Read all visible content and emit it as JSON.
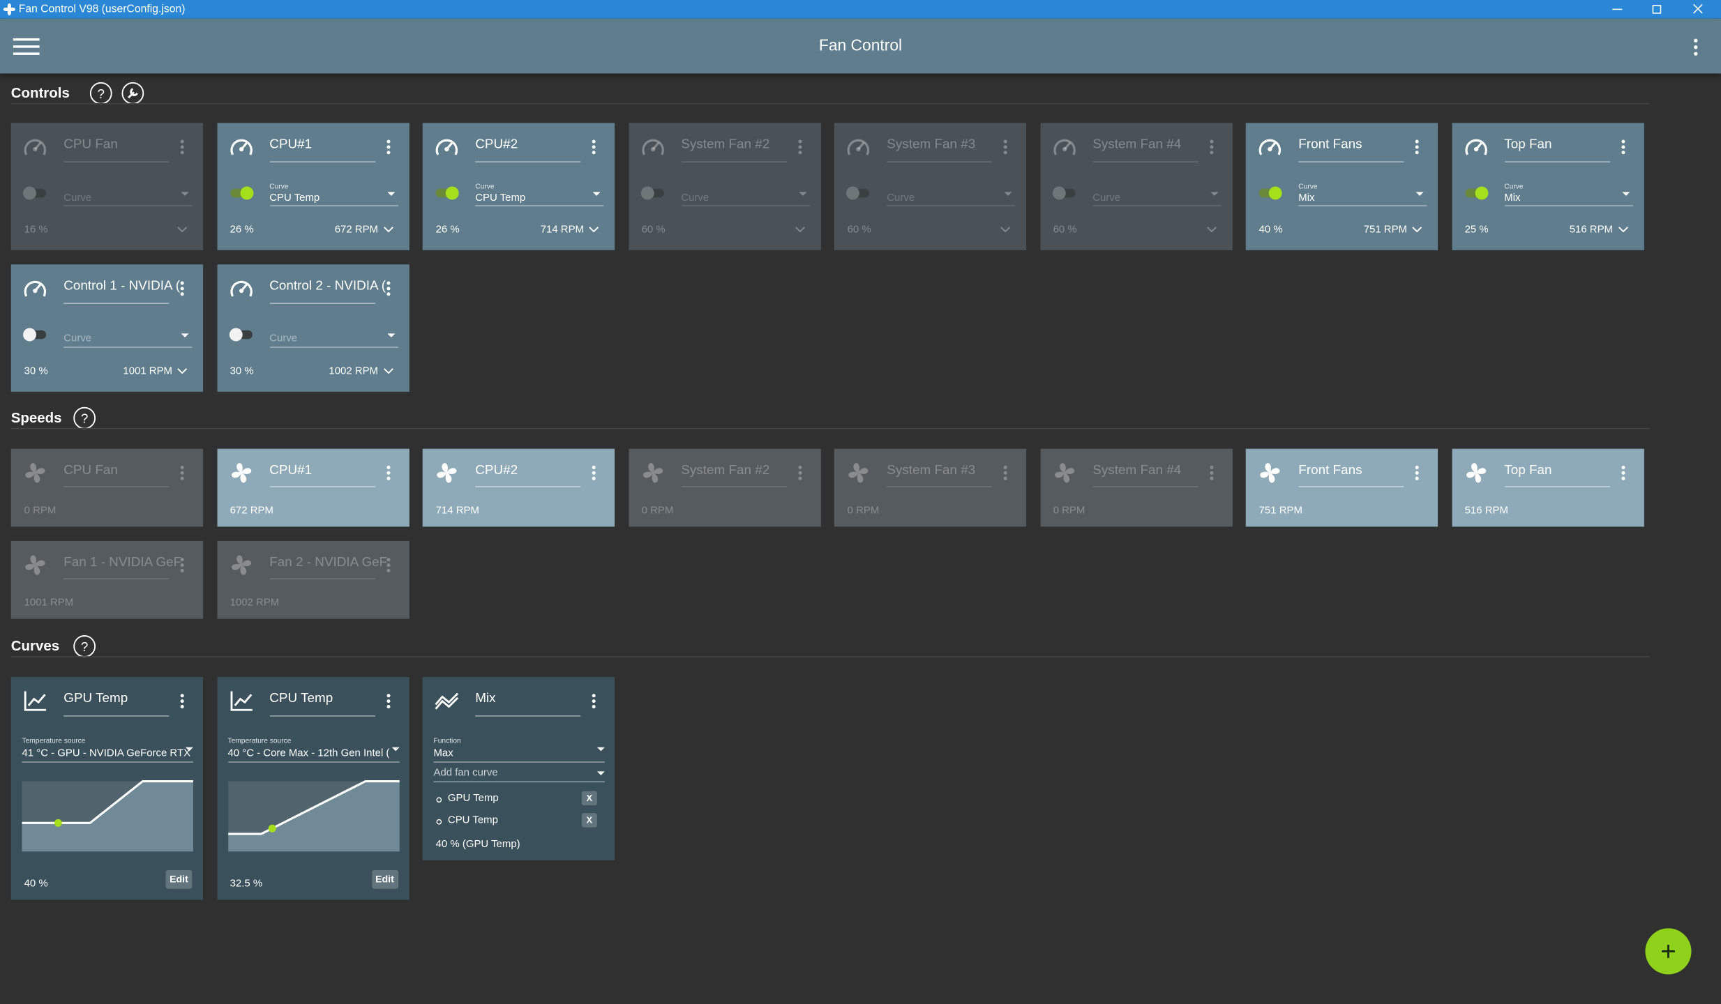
{
  "window": {
    "title": "Fan Control V98 (userConfig.json)"
  },
  "header": {
    "title": "Fan Control"
  },
  "controls": {
    "title": "Controls",
    "cards": [
      {
        "name": "CPU Fan",
        "state": "disabled",
        "curve_label": "Curve",
        "percent": "16 %"
      },
      {
        "name": "CPU#1",
        "state": "on",
        "curve_label": "Curve",
        "curve": "CPU Temp",
        "percent": "26 %",
        "rpm": "672 RPM"
      },
      {
        "name": "CPU#2",
        "state": "on",
        "curve_label": "Curve",
        "curve": "CPU Temp",
        "percent": "26 %",
        "rpm": "714 RPM"
      },
      {
        "name": "System Fan #2",
        "state": "disabled",
        "curve_label": "Curve",
        "percent": "60 %"
      },
      {
        "name": "System Fan #3",
        "state": "disabled",
        "curve_label": "Curve",
        "percent": "60 %"
      },
      {
        "name": "System Fan #4",
        "state": "disabled",
        "curve_label": "Curve",
        "percent": "60 %"
      },
      {
        "name": "Front Fans",
        "state": "on",
        "curve_label": "Curve",
        "curve": "Mix",
        "percent": "40 %",
        "rpm": "751 RPM"
      },
      {
        "name": "Top Fan",
        "state": "on",
        "curve_label": "Curve",
        "curve": "Mix",
        "percent": "25 %",
        "rpm": "516 RPM"
      },
      {
        "name": "Control 1 - NVIDIA (",
        "state": "off",
        "curve_label": "Curve",
        "percent": "30 %",
        "rpm": "1001 RPM"
      },
      {
        "name": "Control 2 - NVIDIA (",
        "state": "off",
        "curve_label": "Curve",
        "percent": "30 %",
        "rpm": "1002 RPM"
      }
    ]
  },
  "speeds": {
    "title": "Speeds",
    "cards": [
      {
        "name": "CPU Fan",
        "active": false,
        "rpm": "0 RPM"
      },
      {
        "name": "CPU#1",
        "active": true,
        "rpm": "672 RPM"
      },
      {
        "name": "CPU#2",
        "active": true,
        "rpm": "714 RPM"
      },
      {
        "name": "System Fan #2",
        "active": false,
        "rpm": "0 RPM"
      },
      {
        "name": "System Fan #3",
        "active": false,
        "rpm": "0 RPM"
      },
      {
        "name": "System Fan #4",
        "active": false,
        "rpm": "0 RPM"
      },
      {
        "name": "Front Fans",
        "active": true,
        "rpm": "751 RPM"
      },
      {
        "name": "Top Fan",
        "active": true,
        "rpm": "516 RPM"
      },
      {
        "name": "Fan 1 - NVIDIA GeF",
        "active": false,
        "rpm": "1001 RPM"
      },
      {
        "name": "Fan 2 - NVIDIA GeF",
        "active": false,
        "rpm": "1002 RPM"
      }
    ]
  },
  "curves": {
    "title": "Curves",
    "cards": [
      {
        "type": "graph",
        "name": "GPU Temp",
        "source_label": "Temperature source",
        "source": "41 °C - GPU - NVIDIA GeForce RTX",
        "value": "40 %",
        "button": "Edit"
      },
      {
        "type": "graph",
        "name": "CPU Temp",
        "source_label": "Temperature source",
        "source": "40 °C - Core Max - 12th Gen Intel (",
        "value": "32.5 %",
        "button": "Edit"
      },
      {
        "type": "mix",
        "name": "Mix",
        "function_label": "Function",
        "function": "Max",
        "add_label": "Add fan curve",
        "items": [
          "GPU Temp",
          "CPU Temp"
        ],
        "remove": "X",
        "value": "40 % (GPU Temp)"
      }
    ]
  }
}
